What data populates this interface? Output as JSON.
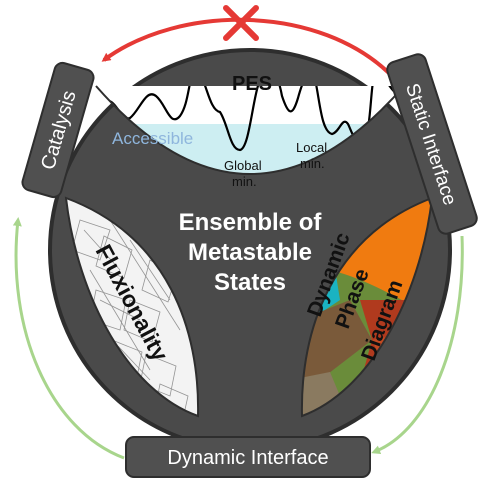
{
  "center": {
    "line1": "Ensemble of",
    "line2": "Metastable",
    "line3": "States"
  },
  "pes": {
    "title": "PES",
    "accessible": "Accessible",
    "global_line1": "Global",
    "global_line2": "min.",
    "local_line1": "Local",
    "local_line2": "min."
  },
  "left_lobe": {
    "label": "Fluxionality"
  },
  "right_lobe": {
    "line1": "Dynamic",
    "line2": "Phase",
    "line3": "Diagram"
  },
  "boxes": {
    "catalysis": "Catalysis",
    "static_interface": "Static Interface",
    "dynamic_interface": "Dynamic Interface"
  },
  "colors": {
    "frame": "#4a4a4a",
    "frame_edge": "#2e2e2e",
    "box": "#505050",
    "arrow_red": "#e53935",
    "arrow_green": "#a8d58c",
    "accessible_fill": "#cdeef2",
    "accessible_text": "#8fb6dd",
    "orange": "#f07b10",
    "teal": "#1ab3c2",
    "brick": "#b03a1e"
  }
}
